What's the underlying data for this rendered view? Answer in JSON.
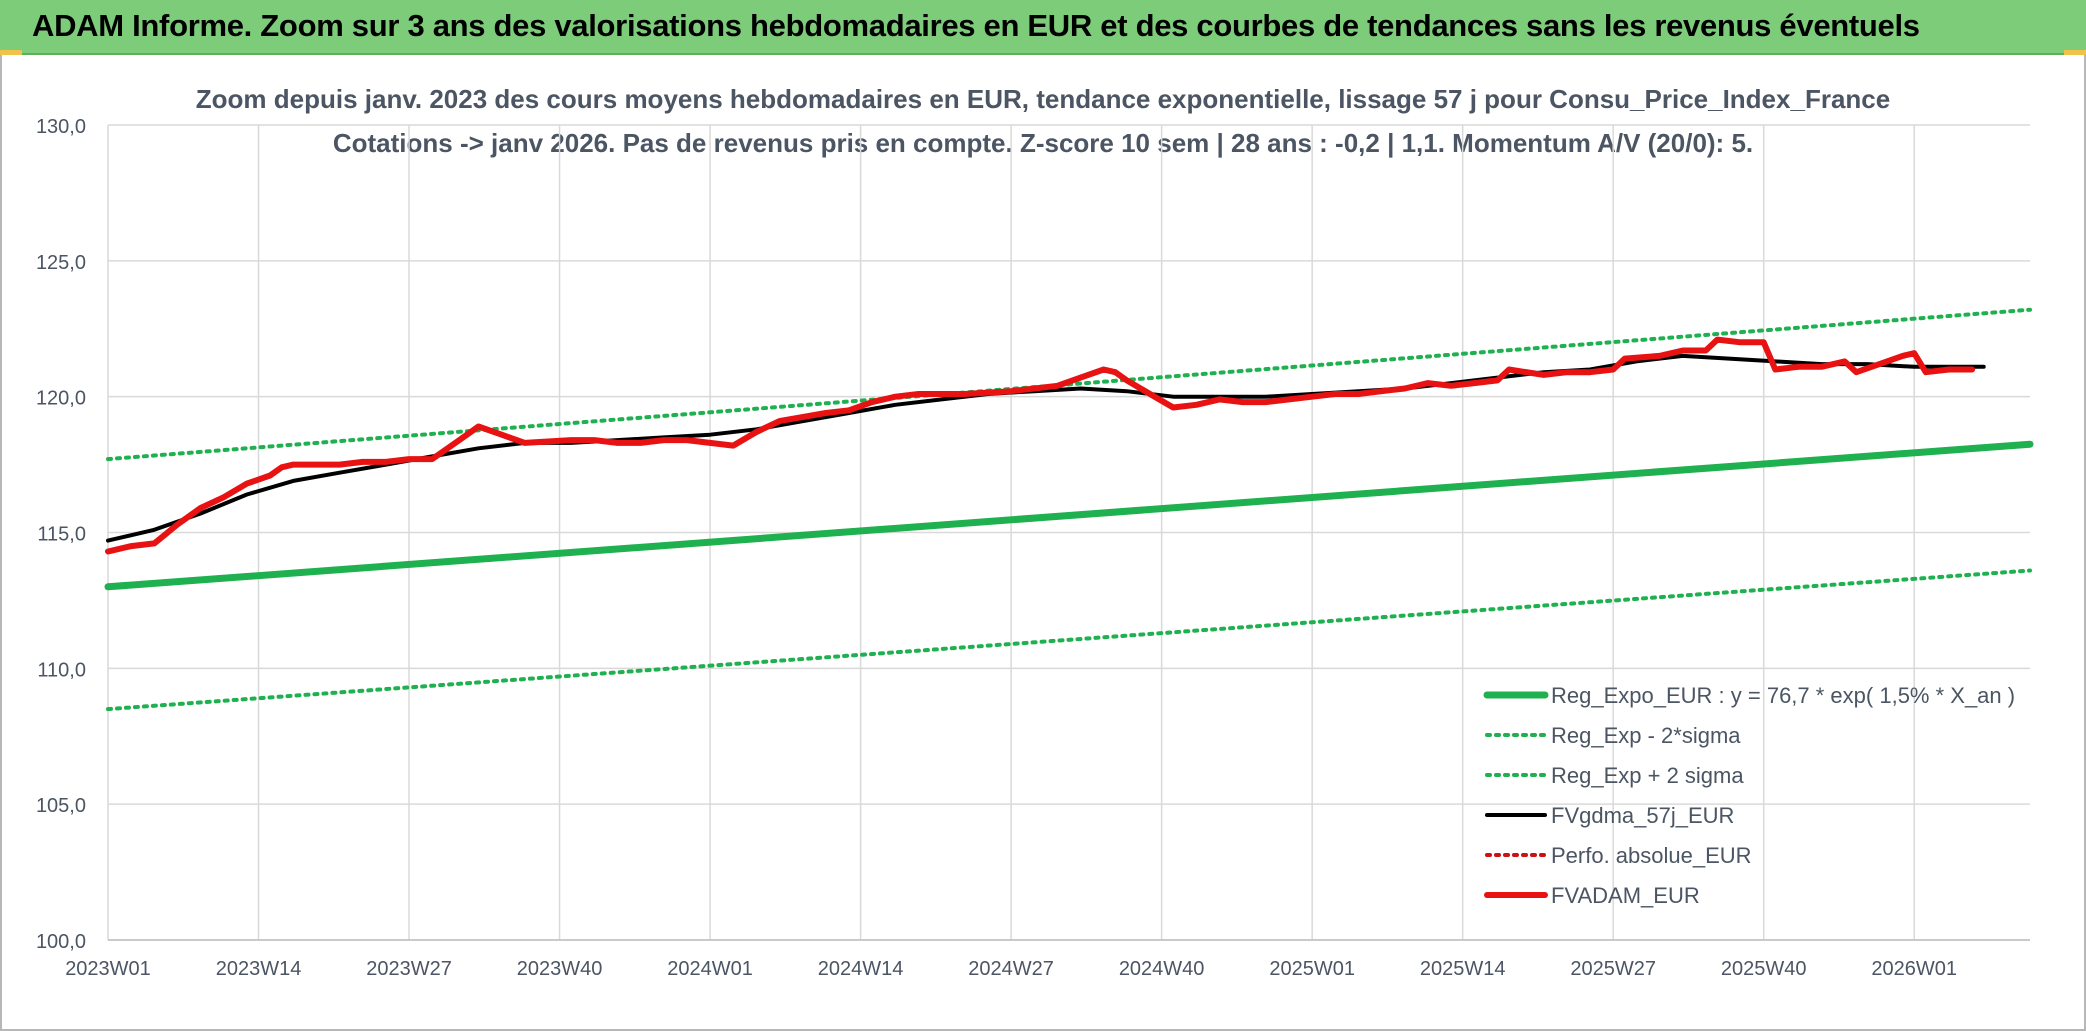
{
  "header": {
    "title": "ADAM Informe. Zoom sur 3 ans des valorisations hebdomadaires en EUR et des courbes de tendances sans les revenus éventuels"
  },
  "colors": {
    "header_bg": "#7ccc7a",
    "reg_expo": "#1fb04f",
    "reg_band": "#1fb04f",
    "fvgdma": "#000000",
    "perfo": "#cc1111",
    "fvadam": "#e81212",
    "grid": "#d9d9d9",
    "text": "#4b5563"
  },
  "chart_data": {
    "type": "line",
    "title": "Zoom depuis janv. 2023 des cours moyens hebdomadaires en EUR, tendance exponentielle, lissage 57 j pour Consu_Price_Index_France",
    "subtitle": "Cotations -> janv 2026. Pas de revenus pris en compte. Z-score 10 sem | 28 ans : -0,2 | 1,1. Momentum A/V (20/0): 5.",
    "xlabel": "",
    "ylabel": "",
    "ylim": [
      100,
      130
    ],
    "yticks": [
      "100,0",
      "105,0",
      "110,0",
      "115,0",
      "120,0",
      "125,0",
      "130,0"
    ],
    "x_axis": {
      "unit": "week index since 2023W01 (0 = 2023W01, 156 = 2026W01)",
      "range": [
        0,
        166
      ],
      "ticks": [
        {
          "x": 0,
          "label": "2023W01"
        },
        {
          "x": 13,
          "label": "2023W14"
        },
        {
          "x": 26,
          "label": "2023W27"
        },
        {
          "x": 39,
          "label": "2023W40"
        },
        {
          "x": 52,
          "label": "2024W01"
        },
        {
          "x": 65,
          "label": "2024W14"
        },
        {
          "x": 78,
          "label": "2024W27"
        },
        {
          "x": 91,
          "label": "2024W40"
        },
        {
          "x": 104,
          "label": "2025W01"
        },
        {
          "x": 117,
          "label": "2025W14"
        },
        {
          "x": 130,
          "label": "2025W27"
        },
        {
          "x": 143,
          "label": "2025W40"
        },
        {
          "x": 156,
          "label": "2026W01"
        }
      ]
    },
    "grid": true,
    "legend_position": "bottom-right",
    "series": [
      {
        "name": "Reg_Expo_EUR : y = 76,7 * exp( 1,5% *  X_an )",
        "style": "solid-thick",
        "color": "#1fb04f",
        "points": [
          [
            0,
            113.0
          ],
          [
            166,
            118.25
          ]
        ]
      },
      {
        "name": "Reg_Exp - 2*sigma",
        "style": "dotted",
        "color": "#1fb04f",
        "points": [
          [
            0,
            108.5
          ],
          [
            166,
            113.6
          ]
        ]
      },
      {
        "name": "Reg_Exp + 2 sigma",
        "style": "dotted",
        "color": "#1fb04f",
        "points": [
          [
            0,
            117.7
          ],
          [
            166,
            123.2
          ]
        ]
      },
      {
        "name": "FVgdma_57j_EUR",
        "style": "solid",
        "color": "#000000",
        "points": [
          [
            0,
            114.7
          ],
          [
            4,
            115.1
          ],
          [
            8,
            115.7
          ],
          [
            12,
            116.4
          ],
          [
            16,
            116.9
          ],
          [
            20,
            117.2
          ],
          [
            24,
            117.5
          ],
          [
            28,
            117.8
          ],
          [
            32,
            118.1
          ],
          [
            36,
            118.3
          ],
          [
            40,
            118.3
          ],
          [
            44,
            118.4
          ],
          [
            48,
            118.5
          ],
          [
            52,
            118.6
          ],
          [
            56,
            118.8
          ],
          [
            60,
            119.1
          ],
          [
            64,
            119.4
          ],
          [
            68,
            119.7
          ],
          [
            72,
            119.9
          ],
          [
            76,
            120.1
          ],
          [
            80,
            120.2
          ],
          [
            84,
            120.3
          ],
          [
            88,
            120.2
          ],
          [
            92,
            120.0
          ],
          [
            96,
            120.0
          ],
          [
            100,
            120.0
          ],
          [
            104,
            120.1
          ],
          [
            108,
            120.2
          ],
          [
            112,
            120.3
          ],
          [
            116,
            120.5
          ],
          [
            120,
            120.7
          ],
          [
            124,
            120.9
          ],
          [
            128,
            121.0
          ],
          [
            132,
            121.3
          ],
          [
            136,
            121.5
          ],
          [
            140,
            121.4
          ],
          [
            144,
            121.3
          ],
          [
            148,
            121.2
          ],
          [
            152,
            121.2
          ],
          [
            156,
            121.1
          ],
          [
            162,
            121.1
          ]
        ]
      },
      {
        "name": "Perfo. absolue_EUR",
        "style": "dotted",
        "color": "#cc1111",
        "points": []
      },
      {
        "name": "FVADAM_EUR",
        "style": "solid-thick",
        "color": "#e81212",
        "points": [
          [
            0,
            114.3
          ],
          [
            2,
            114.5
          ],
          [
            4,
            114.6
          ],
          [
            6,
            115.3
          ],
          [
            8,
            115.9
          ],
          [
            10,
            116.3
          ],
          [
            12,
            116.8
          ],
          [
            14,
            117.1
          ],
          [
            15,
            117.4
          ],
          [
            16,
            117.5
          ],
          [
            18,
            117.5
          ],
          [
            20,
            117.5
          ],
          [
            22,
            117.6
          ],
          [
            24,
            117.6
          ],
          [
            26,
            117.7
          ],
          [
            28,
            117.7
          ],
          [
            30,
            118.3
          ],
          [
            32,
            118.9
          ],
          [
            34,
            118.6
          ],
          [
            36,
            118.3
          ],
          [
            40,
            118.4
          ],
          [
            42,
            118.4
          ],
          [
            44,
            118.3
          ],
          [
            46,
            118.3
          ],
          [
            48,
            118.4
          ],
          [
            50,
            118.4
          ],
          [
            52,
            118.3
          ],
          [
            54,
            118.2
          ],
          [
            56,
            118.7
          ],
          [
            58,
            119.1
          ],
          [
            62,
            119.4
          ],
          [
            64,
            119.5
          ],
          [
            66,
            119.8
          ],
          [
            68,
            120.0
          ],
          [
            70,
            120.1
          ],
          [
            74,
            120.1
          ],
          [
            78,
            120.2
          ],
          [
            82,
            120.4
          ],
          [
            84,
            120.7
          ],
          [
            86,
            121.0
          ],
          [
            87,
            120.9
          ],
          [
            88,
            120.6
          ],
          [
            90,
            120.1
          ],
          [
            92,
            119.6
          ],
          [
            94,
            119.7
          ],
          [
            96,
            119.9
          ],
          [
            98,
            119.8
          ],
          [
            100,
            119.8
          ],
          [
            102,
            119.9
          ],
          [
            104,
            120.0
          ],
          [
            106,
            120.1
          ],
          [
            108,
            120.1
          ],
          [
            110,
            120.2
          ],
          [
            112,
            120.3
          ],
          [
            114,
            120.5
          ],
          [
            116,
            120.4
          ],
          [
            118,
            120.5
          ],
          [
            120,
            120.6
          ],
          [
            121,
            121.0
          ],
          [
            124,
            120.8
          ],
          [
            126,
            120.9
          ],
          [
            128,
            120.9
          ],
          [
            130,
            121.0
          ],
          [
            131,
            121.4
          ],
          [
            134,
            121.5
          ],
          [
            136,
            121.7
          ],
          [
            138,
            121.7
          ],
          [
            139,
            122.1
          ],
          [
            141,
            122.0
          ],
          [
            143,
            122.0
          ],
          [
            144,
            121.0
          ],
          [
            146,
            121.1
          ],
          [
            148,
            121.1
          ],
          [
            150,
            121.3
          ],
          [
            151,
            120.9
          ],
          [
            153,
            121.2
          ],
          [
            155,
            121.5
          ],
          [
            156,
            121.6
          ],
          [
            157,
            120.9
          ],
          [
            159,
            121.0
          ],
          [
            161,
            121.0
          ]
        ]
      }
    ]
  }
}
